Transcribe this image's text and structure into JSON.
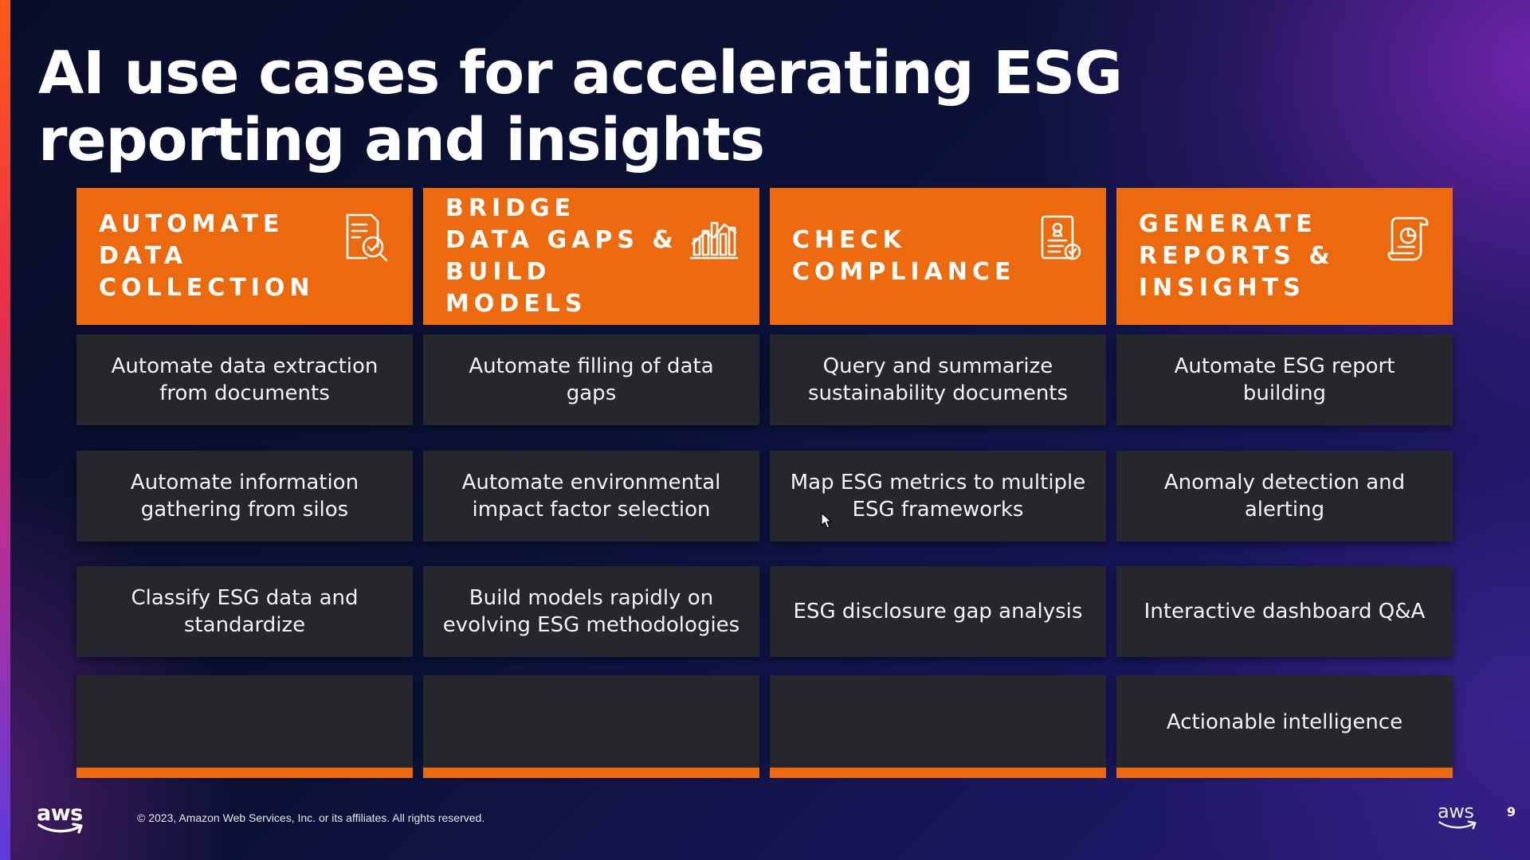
{
  "slide": {
    "title": "AI use cases for accelerating ESG reporting and insights",
    "columns": [
      {
        "header": "AUTOMATE\nDATA\nCOLLECTION",
        "icon": "document-check-icon",
        "cells": [
          "Automate data extraction from documents",
          "Automate information gathering from silos",
          "Classify ESG data and standardize",
          ""
        ]
      },
      {
        "header": "BRIDGE\nDATA GAPS &\nBUILD MODELS",
        "icon": "bar-chart-icon",
        "cells": [
          "Automate filling of data gaps",
          "Automate environmental impact factor selection",
          "Build models rapidly on evolving ESG methodologies",
          ""
        ]
      },
      {
        "header": "CHECK\nCOMPLIANCE",
        "icon": "certificate-icon",
        "cells": [
          "Query and summarize sustainability documents",
          "Map ESG metrics to multiple ESG frameworks",
          "ESG disclosure gap analysis",
          ""
        ]
      },
      {
        "header": "GENERATE\nREPORTS &\nINSIGHTS",
        "icon": "report-scroll-icon",
        "cells": [
          "Automate ESG report building",
          "Anomaly detection and alerting",
          "Interactive dashboard Q&A",
          "Actionable intelligence"
        ]
      }
    ]
  },
  "footer": {
    "logo": "aws",
    "copyright": "© 2023, Amazon Web Services, Inc. or its affiliates. All rights reserved.",
    "corner_logo": "aws",
    "page_number": "9"
  },
  "colors": {
    "accent": "#ec6a0d",
    "cell_background": "#26272c",
    "aws_smile": "#ff9900"
  }
}
